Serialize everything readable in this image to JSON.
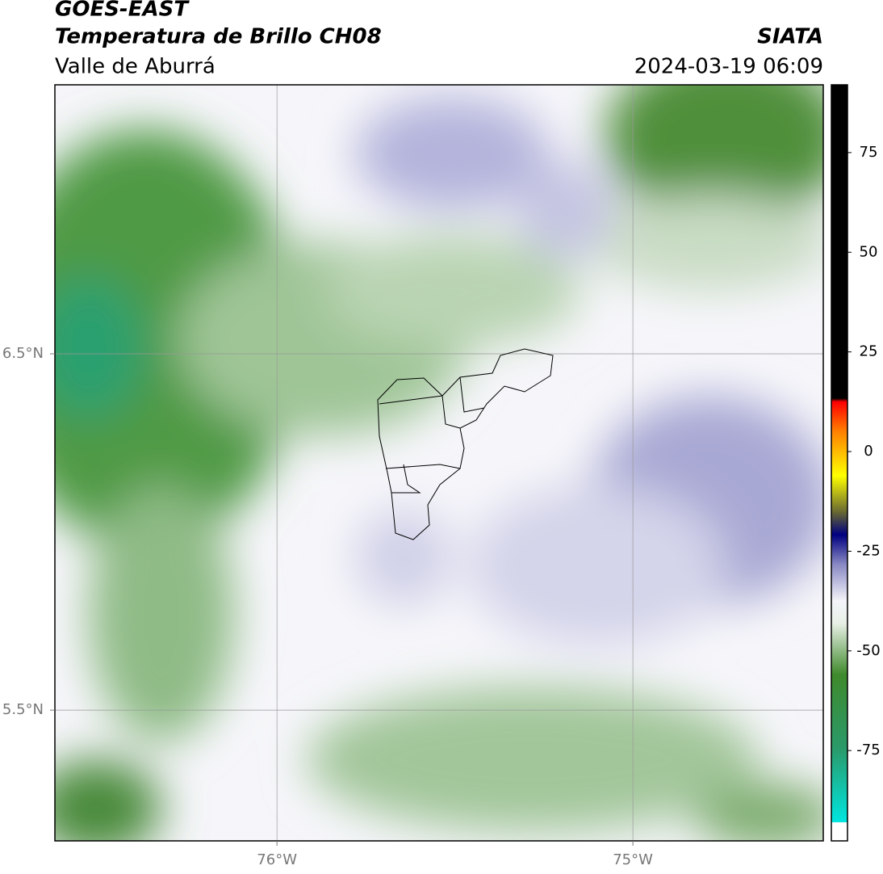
{
  "header": {
    "title": "GOES-EAST",
    "subtitle": "Temperatura de Brillo CH08",
    "region": "Valle de Aburrá",
    "agency": "SIATA",
    "datetime": "2024-03-19 06:09"
  },
  "map": {
    "lonlim": [
      -76.624,
      -74.465
    ],
    "latlim": [
      5.133,
      7.255
    ],
    "lonticks": [
      {
        "value": -76,
        "label": "76°W"
      },
      {
        "value": -75,
        "label": "75°W"
      }
    ],
    "latticks": [
      {
        "value": 6.5,
        "label": "6.5°N"
      },
      {
        "value": 5.5,
        "label": "5.5°N"
      }
    ]
  },
  "colorbar": {
    "lim": [
      -93,
      92
    ],
    "ticks": [
      75,
      50,
      25,
      0,
      -25,
      -50,
      -75
    ]
  }
}
